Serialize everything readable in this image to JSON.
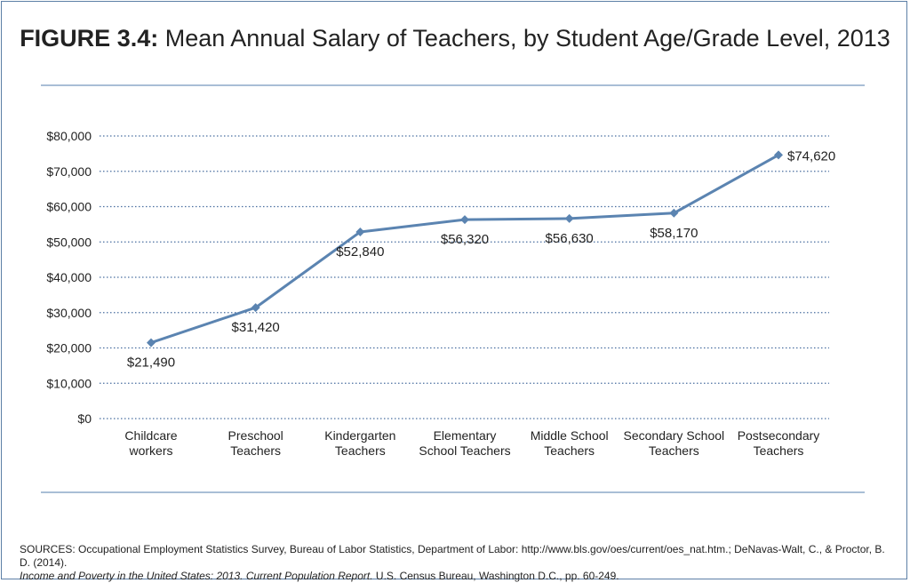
{
  "title_prefix": "FIGURE 3.4:",
  "title_text": "Mean Annual Salary of Teachers, by Student Age/Grade Level, 2013",
  "sources_line1": "SOURCES: Occupational Employment Statistics Survey, Bureau of Labor Statistics, Department of Labor: http://www.bls.gov/oes/current/oes_nat.htm.; DeNavas-Walt, C., & Proctor, B. D. (2014).",
  "sources_line2_italic": "Income and Poverty in the United States: 2013. Current Population Report.",
  "sources_line2_rest": " U.S. Census Bureau, Washington D.C., pp. 60-249.",
  "colors": {
    "line": "#5b84b1",
    "grid": "#4a6fa0",
    "rule": "#a9bed6",
    "border": "#5d7fa6"
  },
  "chart_data": {
    "type": "line",
    "title": "Mean Annual Salary of Teachers, by Student Age/Grade Level, 2013",
    "xlabel": "",
    "ylabel": "",
    "ylim": [
      0,
      80000
    ],
    "y_ticks": [
      0,
      10000,
      20000,
      30000,
      40000,
      50000,
      60000,
      70000,
      80000
    ],
    "y_tick_labels": [
      "$0",
      "$10,000",
      "$20,000",
      "$30,000",
      "$40,000",
      "$50,000",
      "$60,000",
      "$70,000",
      "$80,000"
    ],
    "grid": true,
    "categories": [
      [
        "Childcare",
        "workers"
      ],
      [
        "Preschool",
        "Teachers"
      ],
      [
        "Kindergarten",
        "Teachers"
      ],
      [
        "Elementary",
        "School Teachers"
      ],
      [
        "Middle School",
        "Teachers"
      ],
      [
        "Secondary School",
        "Teachers"
      ],
      [
        "Postsecondary",
        "Teachers"
      ]
    ],
    "series": [
      {
        "values": [
          21490,
          31420,
          52840,
          56320,
          56630,
          58170,
          74620
        ]
      }
    ],
    "data_labels": [
      "$21,490",
      "$31,420",
      "$52,840",
      "$56,320",
      "$56,630",
      "$58,170",
      "$74,620"
    ]
  }
}
